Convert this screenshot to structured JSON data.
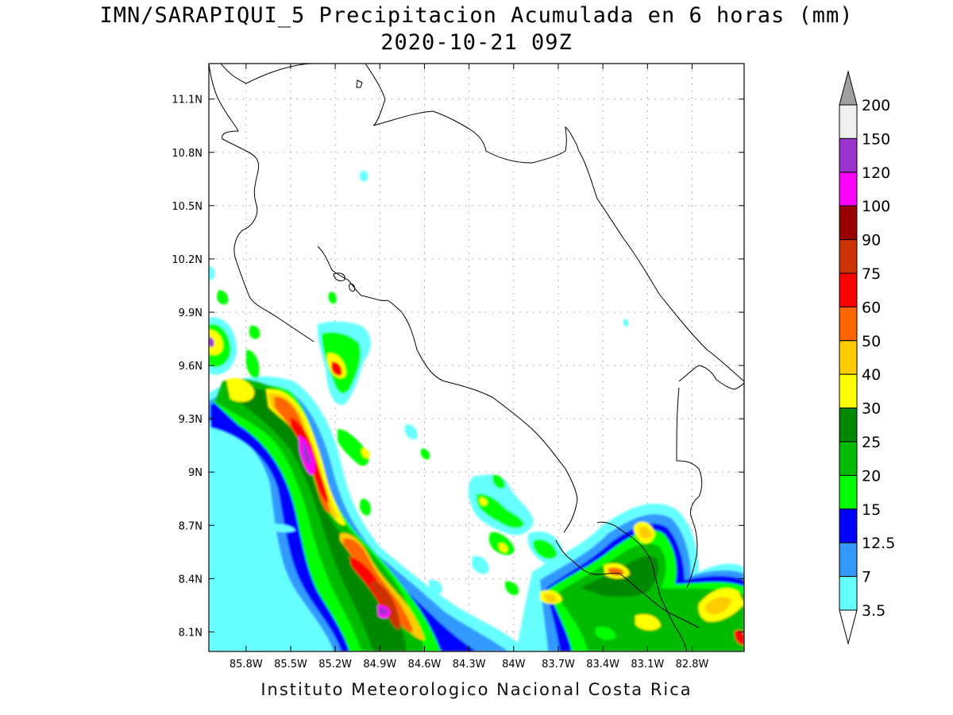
{
  "map": {
    "title": "IMN/SARAPIQUI_5 Precipitacion Acumulada en 6 horas (mm)",
    "subtitle": "2020-10-21 09Z",
    "footer": "Instituto Meteorologico Nacional Costa Rica",
    "extent": {
      "lon_min": -86.05,
      "lon_max": -82.45,
      "lat_min": 7.99,
      "lat_max": 11.3
    },
    "lat_ticks": [
      "11.1N",
      "10.8N",
      "10.5N",
      "10.2N",
      "9.9N",
      "9.6N",
      "9.3N",
      "9N",
      "8.7N",
      "8.4N",
      "8.1N"
    ],
    "lon_ticks": [
      "85.8W",
      "85.5W",
      "85.2W",
      "84.9W",
      "84.6W",
      "84.3W",
      "84W",
      "83.7W",
      "83.4W",
      "83.1W",
      "82.8W"
    ],
    "grid": true,
    "colorbar": {
      "placement": "right",
      "labels": [
        "200",
        "150",
        "120",
        "100",
        "90",
        "75",
        "60",
        "50",
        "40",
        "30",
        "25",
        "20",
        "15",
        "12.5",
        "7",
        "3.5"
      ],
      "colors_top_to_bottom": [
        "#f0f0f0",
        "#9933cc",
        "#ff00ff",
        "#990000",
        "#cc3300",
        "#ff0000",
        "#ff6600",
        "#ffcc00",
        "#ffff00",
        "#008800",
        "#00bb00",
        "#00ff00",
        "#0000ff",
        "#3399ff",
        "#66ffff"
      ],
      "over_color": "#a0a0a0",
      "under_color": "#ffffff"
    },
    "palette": {
      "p3": "#66ffff",
      "p7": "#3399ff",
      "p12": "#0000ff",
      "p15": "#00ff00",
      "p20": "#00bb00",
      "p25": "#008800",
      "p30": "#ffff00",
      "p40": "#ffcc00",
      "p50": "#ff6600",
      "p60": "#ff0000",
      "p75": "#cc3300",
      "p120": "#ff00ff",
      "p150": "#9933cc"
    }
  }
}
